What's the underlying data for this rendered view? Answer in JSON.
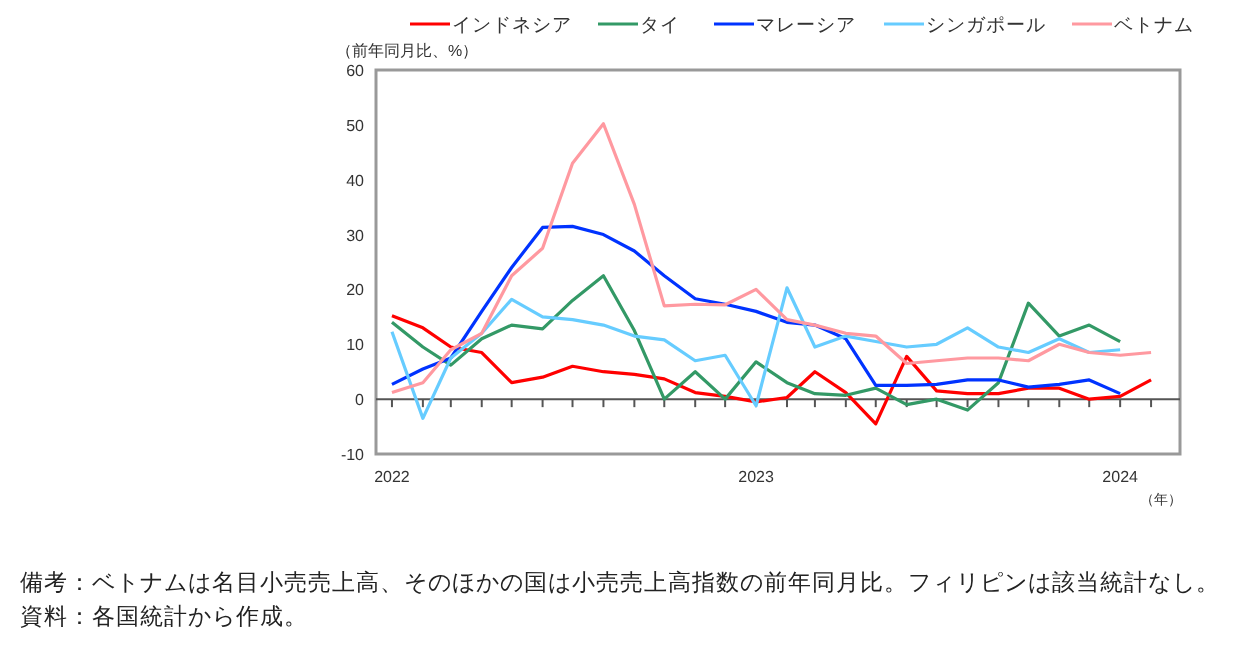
{
  "chart_data": {
    "type": "line",
    "ylabel": "（前年同月比、%）",
    "xlabel": "（年）",
    "x": [
      "2022-01",
      "2022-02",
      "2022-03",
      "2022-04",
      "2022-05",
      "2022-06",
      "2022-07",
      "2022-08",
      "2022-09",
      "2022-10",
      "2022-11",
      "2022-12",
      "2023-01",
      "2023-02",
      "2023-03",
      "2023-04",
      "2023-05",
      "2023-06",
      "2023-07",
      "2023-08",
      "2023-09",
      "2023-10",
      "2023-11",
      "2023-12",
      "2024-01",
      "2024-02"
    ],
    "series": [
      {
        "name": "インドネシア",
        "color": "#ff0000",
        "values": [
          15.2,
          13,
          9.5,
          8.5,
          3,
          4,
          6,
          5,
          4.5,
          3.7,
          1.2,
          0.5,
          -0.5,
          0.3,
          5,
          1.2,
          -4.5,
          7.8,
          1.5,
          1,
          1,
          2,
          2,
          0,
          0.5,
          3.5
        ]
      },
      {
        "name": "タイ",
        "color": "#339966",
        "values": [
          14,
          9.5,
          6.2,
          11,
          13.5,
          12.8,
          18,
          22.5,
          12.5,
          0,
          5,
          0,
          6.8,
          3,
          1,
          0.7,
          2,
          -1,
          0,
          -2,
          3,
          17.5,
          11.5,
          13.5,
          10.5,
          null
        ]
      },
      {
        "name": "マレーシア",
        "color": "#0033ff",
        "values": [
          2.7,
          5.5,
          7.5,
          16,
          24,
          31.3,
          31.5,
          30,
          27,
          22.5,
          18.3,
          17.3,
          16,
          14,
          13.5,
          11,
          2.5,
          2.5,
          2.7,
          3.5,
          3.5,
          2.2,
          2.7,
          3.5,
          1,
          null
        ]
      },
      {
        "name": "シンガポール",
        "color": "#66ccff",
        "values": [
          12.3,
          -3.5,
          7.5,
          12,
          18.2,
          15,
          14.5,
          13.5,
          11.5,
          10.8,
          7,
          8,
          -1.2,
          20.3,
          9.5,
          11.5,
          10.5,
          9.5,
          10,
          13,
          9.5,
          8.5,
          11,
          8.5,
          9,
          null
        ]
      },
      {
        "name": "ベトナム",
        "color": "#ff99a0",
        "values": [
          1.2,
          3,
          9,
          12,
          22.5,
          27.5,
          43,
          50.2,
          35.5,
          17,
          17.3,
          17.2,
          20,
          14.5,
          13.5,
          12,
          11.5,
          6.5,
          7,
          7.5,
          7.5,
          7,
          10,
          8.5,
          8,
          8.5
        ]
      }
    ],
    "xlim": [
      "2021-12-16",
      "2024-03-01"
    ],
    "xticks": [
      {
        "value": "2022-01",
        "label": "2022"
      },
      {
        "value": "2022-02",
        "label": null
      },
      {
        "value": "2022-03",
        "label": null
      },
      {
        "value": "2022-04",
        "label": null
      },
      {
        "value": "2022-05",
        "label": null
      },
      {
        "value": "2022-06",
        "label": null
      },
      {
        "value": "2022-07",
        "label": null
      },
      {
        "value": "2022-08",
        "label": null
      },
      {
        "value": "2022-09",
        "label": null
      },
      {
        "value": "2022-10",
        "label": null
      },
      {
        "value": "2022-11",
        "label": null
      },
      {
        "value": "2022-12",
        "label": null
      },
      {
        "value": "2023-01",
        "label": "2023"
      },
      {
        "value": "2023-02",
        "label": null
      },
      {
        "value": "2023-03",
        "label": null
      },
      {
        "value": "2023-04",
        "label": null
      },
      {
        "value": "2023-05",
        "label": null
      },
      {
        "value": "2023-06",
        "label": null
      },
      {
        "value": "2023-07",
        "label": null
      },
      {
        "value": "2023-08",
        "label": null
      },
      {
        "value": "2023-09",
        "label": null
      },
      {
        "value": "2023-10",
        "label": null
      },
      {
        "value": "2023-11",
        "label": null
      },
      {
        "value": "2023-12",
        "label": null
      },
      {
        "value": "2024-01",
        "label": "2024"
      },
      {
        "value": "2024-02",
        "label": null
      }
    ],
    "ylim": [
      -10,
      60
    ],
    "yticks": [
      -10,
      0,
      10,
      20,
      30,
      40,
      50,
      60
    ],
    "legend": "top",
    "marker": "none",
    "line_style": "solid",
    "annotations": [
      "備考：ベトナムは名目小売売上高、そのほかの国は小売売上高指数の前年同月比。フィリピンは該当統計なし。",
      "資料：各国統計から作成。"
    ]
  }
}
